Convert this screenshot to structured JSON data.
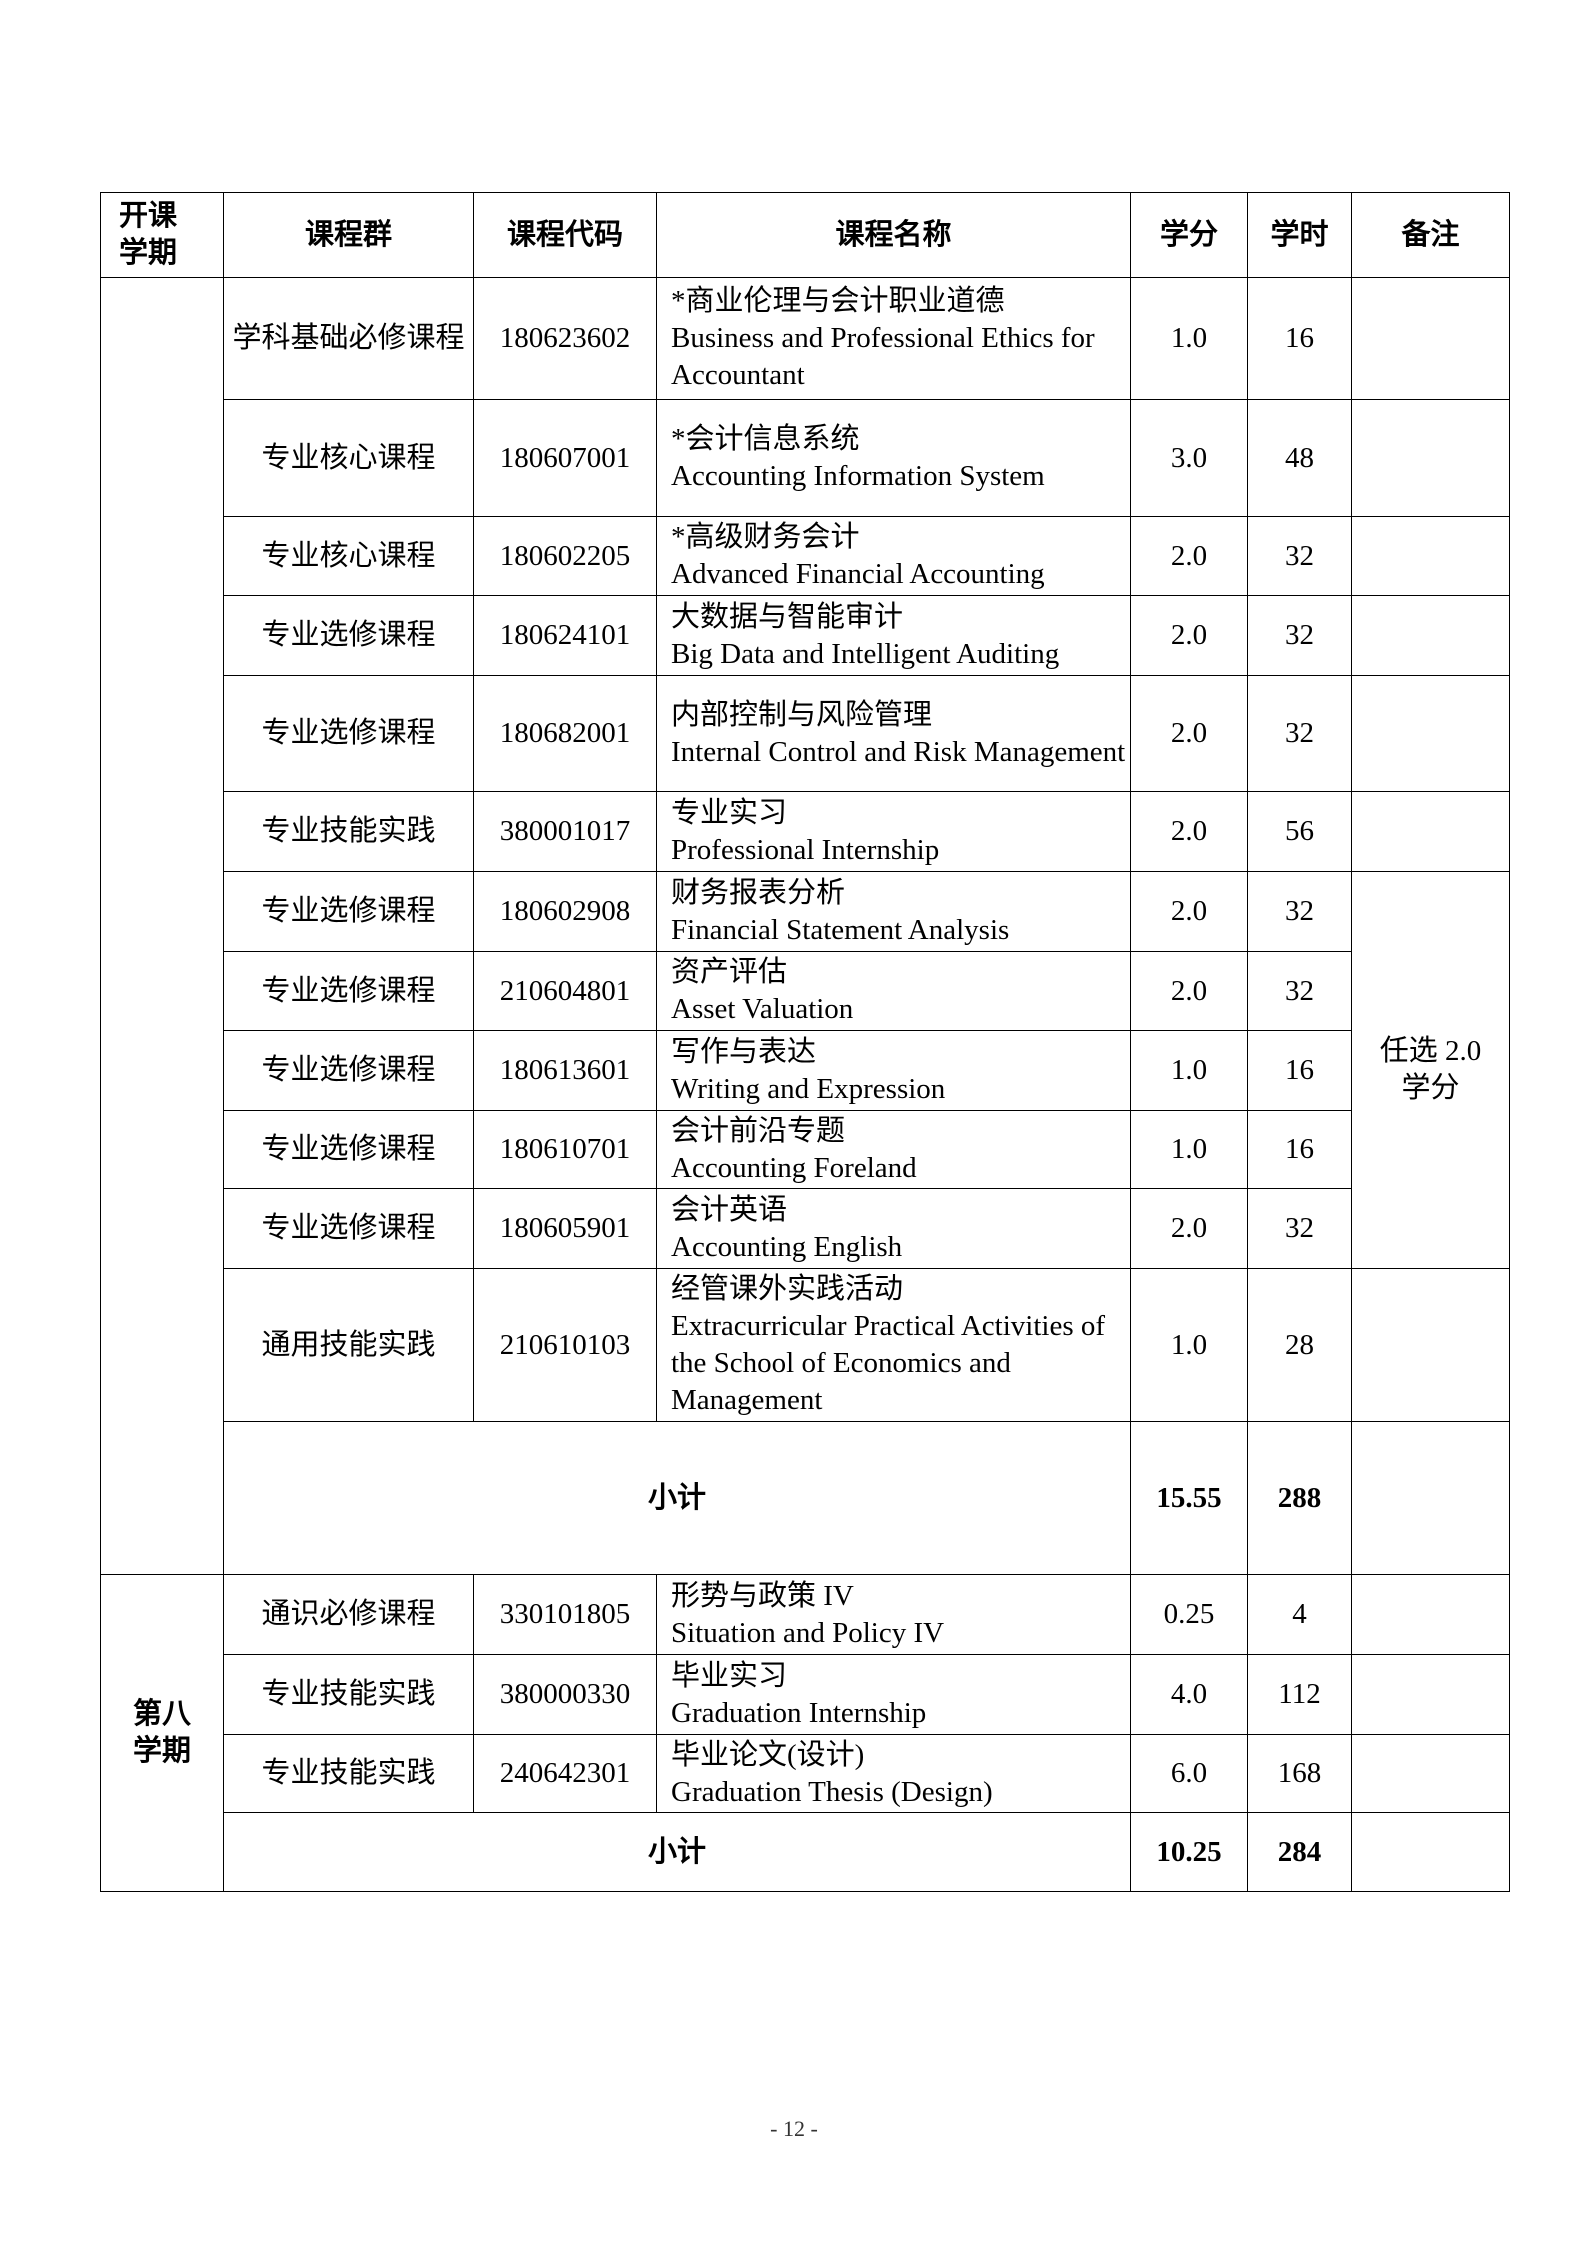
{
  "headers": [
    "开课学期",
    "课程群",
    "课程代码",
    "课程名称",
    "学分",
    "学时",
    "备注"
  ],
  "header_short": {
    "term_line1": "开课",
    "term_line2": "学期"
  },
  "term7": {
    "rows": [
      {
        "group": "学科基础必修课程",
        "code": "180623602",
        "name_cn": "*商业伦理与会计职业道德",
        "name_en": "Business and Professional Ethics for Accountant",
        "credit": "1.0",
        "hours": "16"
      },
      {
        "group": "专业核心课程",
        "code": "180607001",
        "name_cn": "*会计信息系统",
        "name_en": "Accounting Information System",
        "credit": "3.0",
        "hours": "48"
      },
      {
        "group": "专业核心课程",
        "code": "180602205",
        "name_cn": "*高级财务会计",
        "name_en": "Advanced Financial Accounting",
        "credit": "2.0",
        "hours": "32"
      },
      {
        "group": "专业选修课程",
        "code": "180624101",
        "name_cn": "大数据与智能审计",
        "name_en": "Big Data and Intelligent Auditing",
        "credit": "2.0",
        "hours": "32"
      },
      {
        "group": "专业选修课程",
        "code": "180682001",
        "name_cn": "内部控制与风险管理",
        "name_en": "Internal Control and Risk Management",
        "credit": "2.0",
        "hours": "32"
      },
      {
        "group": "专业技能实践",
        "code": "380001017",
        "name_cn": "专业实习",
        "name_en": "Professional Internship",
        "credit": "2.0",
        "hours": "56"
      },
      {
        "group": "专业选修课程",
        "code": "180602908",
        "name_cn": "财务报表分析",
        "name_en": "Financial Statement Analysis",
        "credit": "2.0",
        "hours": "32"
      },
      {
        "group": "专业选修课程",
        "code": "210604801",
        "name_cn": "资产评估",
        "name_en": "Asset Valuation",
        "credit": "2.0",
        "hours": "32"
      },
      {
        "group": "专业选修课程",
        "code": "180613601",
        "name_cn": "写作与表达",
        "name_en": "Writing and Expression",
        "credit": "1.0",
        "hours": "16"
      },
      {
        "group": "专业选修课程",
        "code": "180610701",
        "name_cn": "会计前沿专题",
        "name_en": "Accounting Foreland",
        "credit": "1.0",
        "hours": "16"
      },
      {
        "group": "专业选修课程",
        "code": "180605901",
        "name_cn": "会计英语",
        "name_en": "Accounting English",
        "credit": "2.0",
        "hours": "32"
      },
      {
        "group": "通用技能实践",
        "code": "210610103",
        "name_cn": "经管课外实践活动",
        "name_en": "Extracurricular Practical Activities of the School of Economics and Management",
        "credit": "1.0",
        "hours": "28"
      }
    ],
    "elective_note": "任选 2.0 学分",
    "subtotal": {
      "label": "小计",
      "credit": "15.55",
      "hours": "288"
    }
  },
  "term8": {
    "label": "第八学期",
    "rows": [
      {
        "group": "通识必修课程",
        "code": "330101805",
        "name_cn": "形势与政策  IV",
        "name_en": "Situation and Policy IV",
        "credit": "0.25",
        "hours": "4"
      },
      {
        "group": "专业技能实践",
        "code": "380000330",
        "name_cn": "毕业实习",
        "name_en": "Graduation Internship",
        "credit": "4.0",
        "hours": "112"
      },
      {
        "group": "专业技能实践",
        "code": "240642301",
        "name_cn": "毕业论文(设计)",
        "name_en": "Graduation Thesis (Design)",
        "credit": "6.0",
        "hours": "168"
      }
    ],
    "subtotal": {
      "label": "小计",
      "credit": "10.25",
      "hours": "284"
    }
  },
  "page_number": "- 12 -"
}
